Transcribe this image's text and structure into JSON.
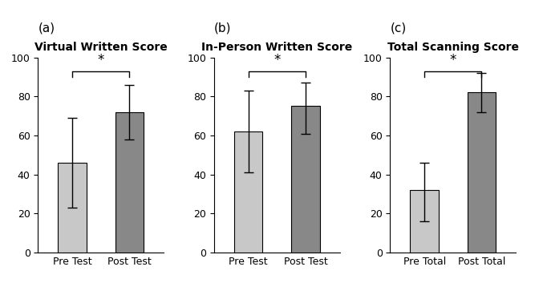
{
  "chart_data": [
    {
      "type": "bar",
      "panel_label": "(a)",
      "title": "Virtual Written Score",
      "categories": [
        "Pre Test",
        "Post Test"
      ],
      "values": [
        46,
        72
      ],
      "errors_low": [
        23,
        14
      ],
      "errors_high": [
        23,
        14
      ],
      "colors": [
        "#c8c8c8",
        "#888888"
      ],
      "ylim": [
        0,
        100
      ],
      "yticks": [
        0,
        20,
        40,
        60,
        80,
        100
      ],
      "annotations": [
        {
          "text": "*",
          "from": "Pre Test",
          "to": "Post Test",
          "bracket_y": 93,
          "tick_len": 3,
          "text_y": 95
        }
      ]
    },
    {
      "type": "bar",
      "panel_label": "(b)",
      "title": "In-Person Written Score",
      "categories": [
        "Pre Test",
        "Post Test"
      ],
      "values": [
        62,
        75
      ],
      "errors_low": [
        21,
        14
      ],
      "errors_high": [
        21,
        12
      ],
      "colors": [
        "#c8c8c8",
        "#888888"
      ],
      "ylim": [
        0,
        100
      ],
      "yticks": [
        0,
        20,
        40,
        60,
        80,
        100
      ],
      "annotations": [
        {
          "text": "*",
          "from": "Pre Test",
          "to": "Post Test",
          "bracket_y": 93,
          "tick_len": 3,
          "text_y": 95
        }
      ]
    },
    {
      "type": "bar",
      "panel_label": "(c)",
      "title": "Total Scanning Score",
      "categories": [
        "Pre Total",
        "Post Total"
      ],
      "values": [
        32,
        82
      ],
      "errors_low": [
        16,
        10
      ],
      "errors_high": [
        14,
        10
      ],
      "colors": [
        "#c8c8c8",
        "#888888"
      ],
      "ylim": [
        0,
        100
      ],
      "yticks": [
        0,
        20,
        40,
        60,
        80,
        100
      ],
      "annotations": [
        {
          "text": "*",
          "from": "Pre Total",
          "to": "Post Total",
          "bracket_y": 93,
          "tick_len": 3,
          "text_y": 95
        }
      ]
    }
  ]
}
